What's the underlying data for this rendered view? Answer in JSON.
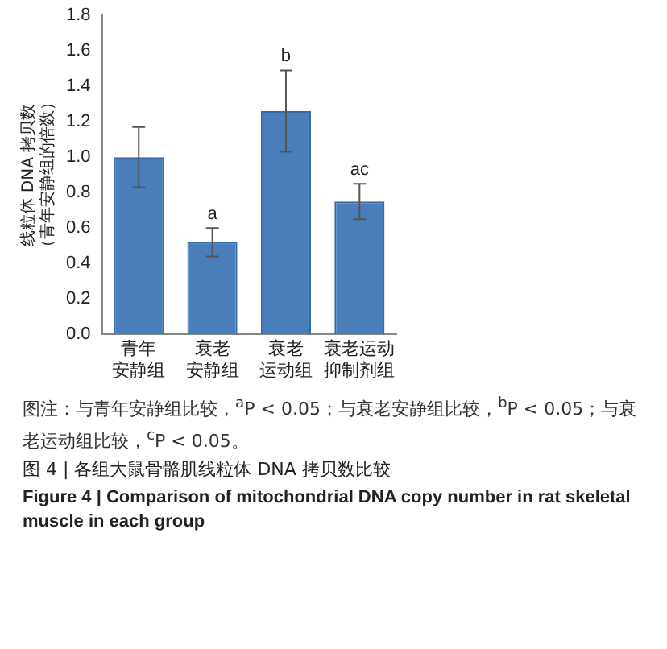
{
  "chart_data": {
    "type": "bar",
    "title": "图 4 | 各组大鼠骨骼肌线粒体 DNA 拷贝数比较",
    "subtitle": "Figure 4 | Comparison of mitochondrial DNA copy number in rat skeletal muscle in each group",
    "ylabel": "线粒体 DNA 拷贝数（青年安静组的倍数）",
    "categories": [
      "青年安静组",
      "衰老安静组",
      "衰老运动组",
      "衰老运动抑制剂组"
    ],
    "values": [
      1.0,
      0.52,
      1.26,
      0.75
    ],
    "errors": [
      0.17,
      0.08,
      0.23,
      0.1
    ],
    "color": "#4a7ebb",
    "ylim": [
      0,
      1.8
    ],
    "yticks": [
      {
        "value": 0,
        "label": "0.0"
      },
      0.2,
      0.4,
      0.6,
      0.8,
      {
        "value": 1,
        "label": "1.0"
      },
      1.2,
      1.4,
      1.6,
      1.8
    ],
    "grid": false,
    "legend": false,
    "annotations": [
      {
        "text": "a",
        "x": "衰老安静组",
        "y": 0.6
      },
      {
        "text": "b",
        "x": "衰老运动组",
        "y": 1.49
      },
      {
        "text": "ac",
        "x": "衰老运动抑制剂组",
        "y": 0.85
      },
      "图注：与青年安静组比较，$^{a}$P < 0.05；与衰老安静组比较，$^{b}$P < 0.05；与衰老运动组比较，$^{c}$P < 0.05。"
    ]
  }
}
